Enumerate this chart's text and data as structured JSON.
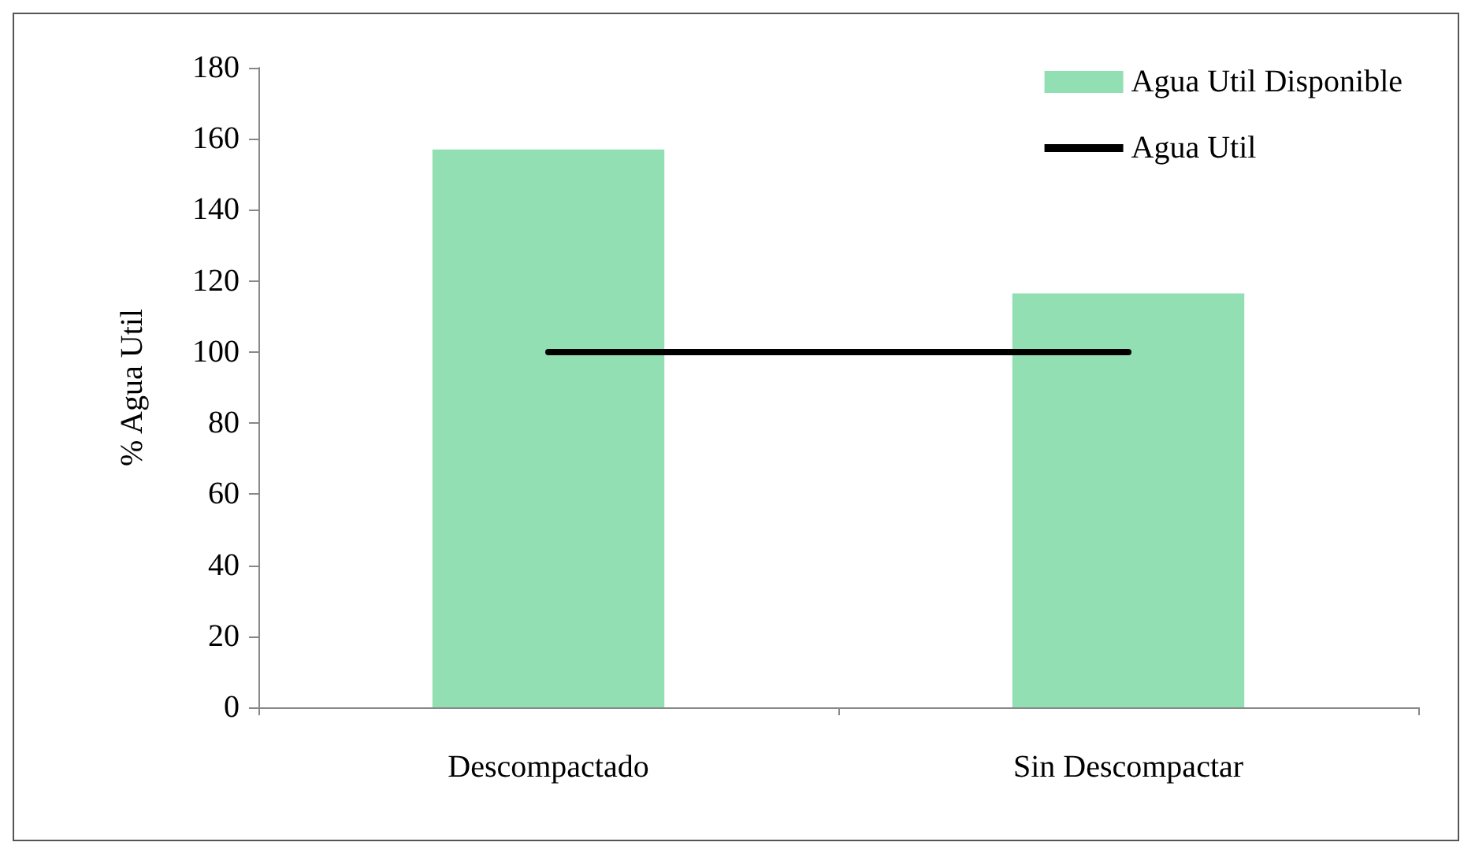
{
  "chart_data": {
    "type": "bar",
    "ylabel": "% Agua Util",
    "categories": [
      "Descompactado",
      "Sin Descompactar"
    ],
    "series": [
      {
        "name": "Agua Util Disponible",
        "color": "#92dfb3",
        "values": [
          157,
          116.5
        ]
      },
      {
        "name": "Agua Util",
        "type": "line",
        "color": "#000000",
        "values": [
          100,
          100
        ],
        "marker": "none",
        "line_style": "solid"
      }
    ],
    "ylim": [
      0,
      180
    ],
    "yticks": [
      0,
      20,
      40,
      60,
      80,
      100,
      120,
      140,
      160,
      180
    ],
    "grid": false,
    "legend": "top right"
  }
}
